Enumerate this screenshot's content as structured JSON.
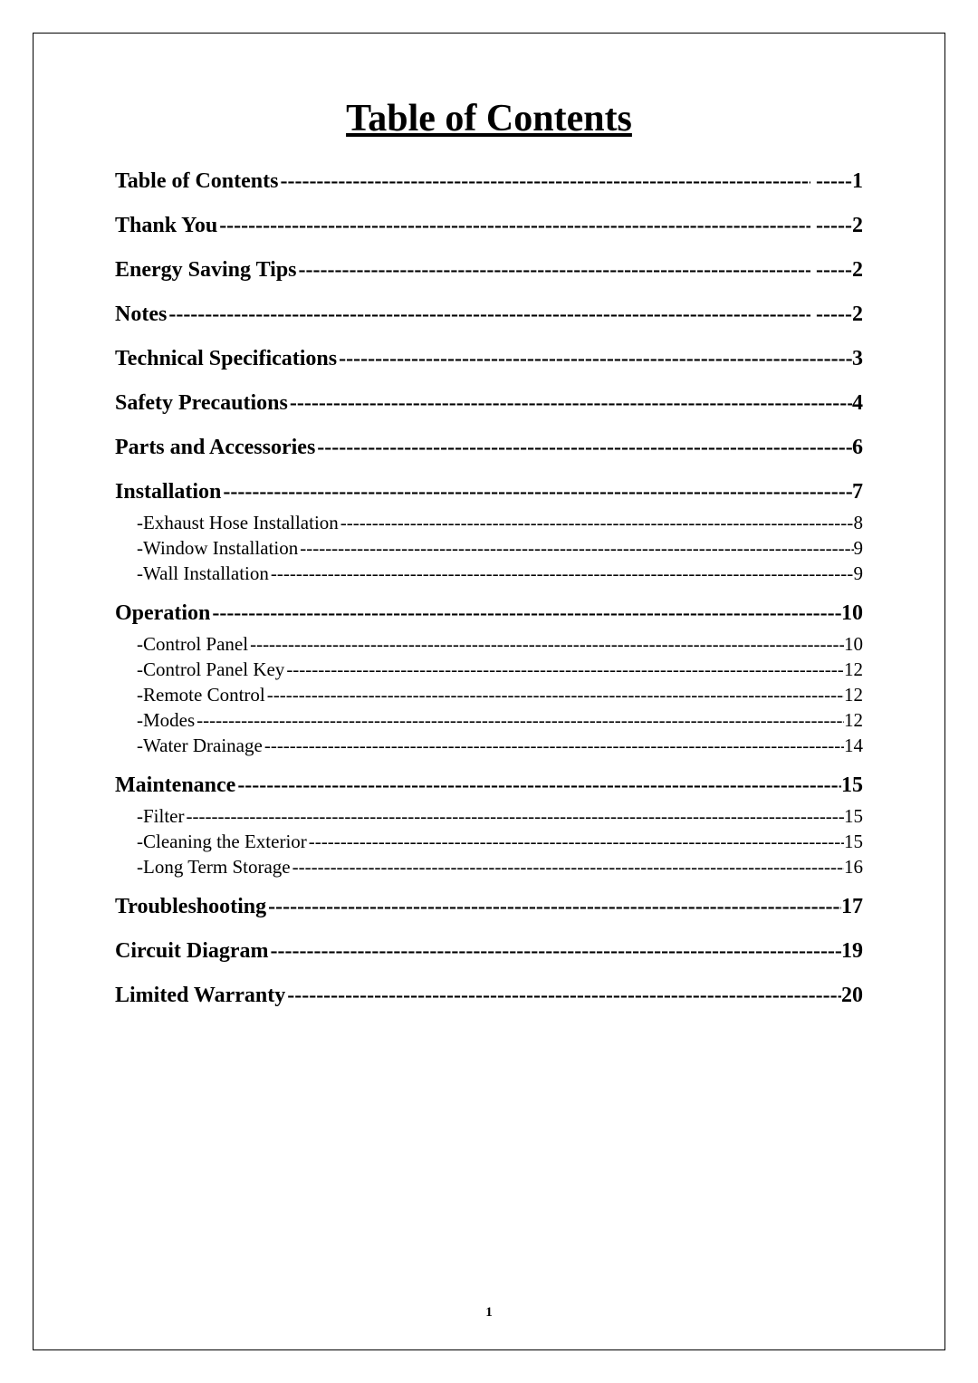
{
  "title": "Table of Contents",
  "page_number": "1",
  "dash_char": "-",
  "entries": [
    {
      "level": "main",
      "label": "Table of Contents",
      "page": "1",
      "trailing_space_gap": true
    },
    {
      "level": "main",
      "label": "Thank You",
      "page": "2",
      "trailing_space_gap": true
    },
    {
      "level": "main",
      "label": "Energy Saving Tips",
      "page": "2",
      "trailing_space_gap": true
    },
    {
      "level": "main",
      "label": "Notes",
      "page": "2",
      "trailing_space_gap": true
    },
    {
      "level": "main",
      "label": "Technical Specifications",
      "page": "3",
      "trailing_space_gap": false
    },
    {
      "level": "main",
      "label": "Safety Precautions",
      "page": "4",
      "trailing_space_gap": false
    },
    {
      "level": "main",
      "label": "Parts and Accessories",
      "page": "6",
      "trailing_space_gap": false
    },
    {
      "level": "main",
      "label": "Installation",
      "page": "7",
      "trailing_space_gap": false,
      "gap_small": true
    },
    {
      "level": "sub",
      "label": "Exhaust Hose Installation",
      "page": "8"
    },
    {
      "level": "sub",
      "label": "Window Installation",
      "page": "9"
    },
    {
      "level": "sub",
      "label": "Wall Installation",
      "page": "9"
    },
    {
      "level": "main",
      "label": "Operation",
      "page": "10",
      "trailing_space_gap": false,
      "gap_small": true,
      "after_sub": true,
      "space_after_label": true
    },
    {
      "level": "sub",
      "label": "Control Panel",
      "page": "10"
    },
    {
      "level": "sub",
      "label": "Control Panel Key",
      "page": "12"
    },
    {
      "level": "sub",
      "label": "Remote Control",
      "page": "12"
    },
    {
      "level": "sub",
      "label": "Modes",
      "page": "12"
    },
    {
      "level": "sub",
      "label": "Water Drainage",
      "page": "14"
    },
    {
      "level": "main",
      "label": "Maintenance",
      "page": "15",
      "trailing_space_gap": false,
      "gap_small": true,
      "after_sub": true
    },
    {
      "level": "sub",
      "label": " Filter",
      "page": "15"
    },
    {
      "level": "sub",
      "label": "Cleaning the Exterior",
      "page": "15"
    },
    {
      "level": "sub",
      "label": "Long Term Storage",
      "page": "16"
    },
    {
      "level": "main",
      "label": "Troubleshooting",
      "page": "17",
      "trailing_space_gap": false,
      "after_sub": true
    },
    {
      "level": "main",
      "label": "Circuit Diagram",
      "page": "19",
      "trailing_space_gap": false
    },
    {
      "level": "main",
      "label": "Limited Warranty",
      "page": "20",
      "trailing_space_gap": false
    }
  ]
}
